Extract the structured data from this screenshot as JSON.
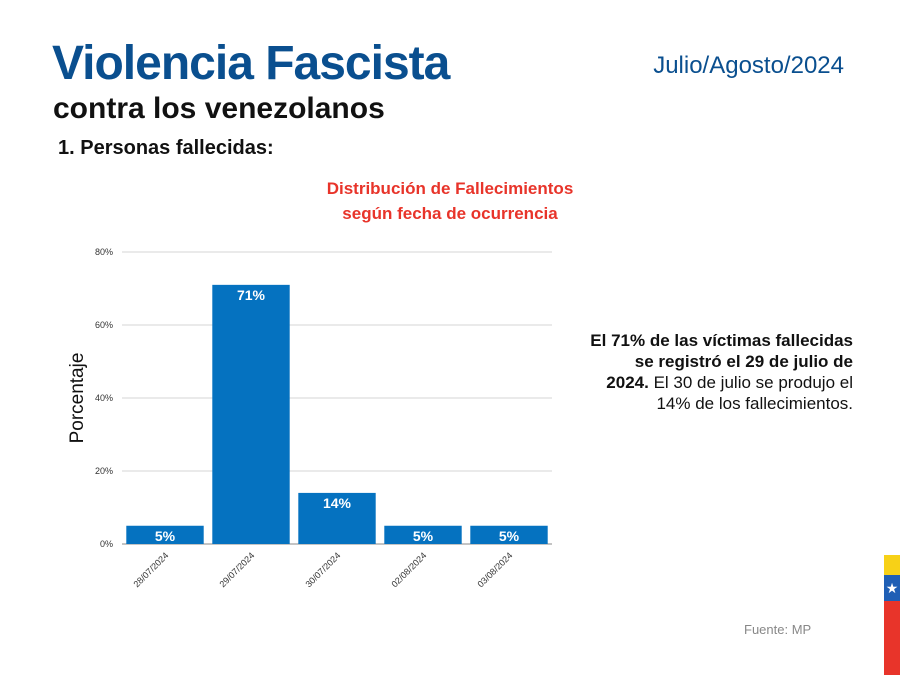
{
  "header": {
    "title": "Violencia Fascista",
    "subtitle": "contra los venezolanos",
    "date": "Julio/Agosto/2024",
    "section": "1.  Personas fallecidas:"
  },
  "chart_title": [
    "Distribución de Fallecimientos",
    "según fecha de ocurrencia"
  ],
  "chart_data": {
    "type": "bar",
    "categories": [
      "28/07/2024",
      "29/07/2024",
      "30/07/2024",
      "02/08/2024",
      "03/08/2024"
    ],
    "values": [
      5,
      71,
      14,
      5,
      5
    ],
    "data_labels": [
      "5%",
      "71%",
      "14%",
      "5%",
      "5%"
    ],
    "ylabel": "Porcentaje",
    "ylim": [
      0,
      80
    ],
    "yticks": [
      0,
      20,
      40,
      60,
      80
    ],
    "ytick_labels": [
      "0%",
      "20%",
      "40%",
      "60%",
      "80%"
    ],
    "grid": true,
    "bar_color": "#0572c0"
  },
  "note": {
    "bold": "El 71% de las víctimas fallecidas se registró el 29 de julio de 2024.",
    "rest": "El 30 de julio se produjo el 14% de los fallecimientos."
  },
  "source": "Fuente: MP",
  "flag_star": "★",
  "colors": {
    "title": "#0a4f8f",
    "chart_title": "#e8342a",
    "bars": "#0572c0",
    "flag": [
      "#f7d117",
      "#1f5fb5",
      "#e8342a"
    ]
  }
}
